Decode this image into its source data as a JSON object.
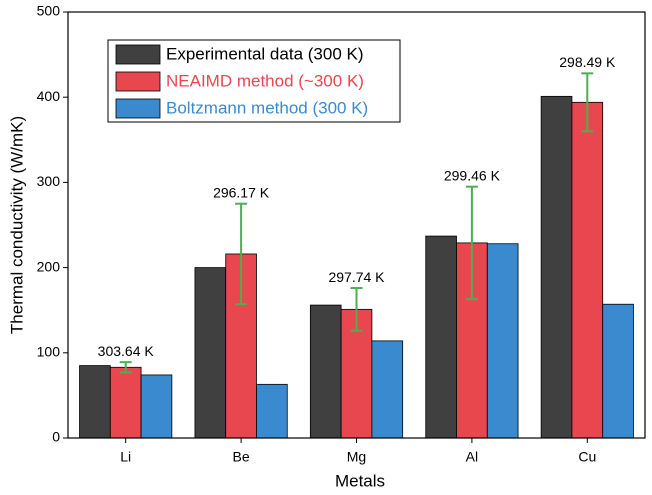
{
  "chart_data": {
    "type": "bar",
    "x_label": "Metals",
    "y_label": "Thermal conductivity (W/mK)",
    "categories": [
      "Li",
      "Be",
      "Mg",
      "Al",
      "Cu"
    ],
    "series": [
      {
        "name": "Experimental data (300 K)",
        "color": "#404040",
        "values": [
          85,
          200,
          156,
          237,
          401
        ]
      },
      {
        "name": "NEAIMD method (~300 K)",
        "color": "#e8474f",
        "values": [
          83,
          216,
          151,
          229,
          394
        ],
        "errors": [
          6,
          59,
          25,
          66,
          34
        ],
        "error_color": "#4caf50"
      },
      {
        "name": "Boltzmann method (300 K)",
        "color": "#3a8ad0",
        "values": [
          74,
          63,
          114,
          228,
          157
        ]
      }
    ],
    "annotations": [
      "303.64 K",
      "296.17 K",
      "297.74 K",
      "299.46 K",
      "298.49 K"
    ],
    "ylim": [
      0,
      500
    ],
    "yticks": [
      0,
      100,
      200,
      300,
      400,
      500
    ],
    "grid": false,
    "legend": "upper left"
  }
}
